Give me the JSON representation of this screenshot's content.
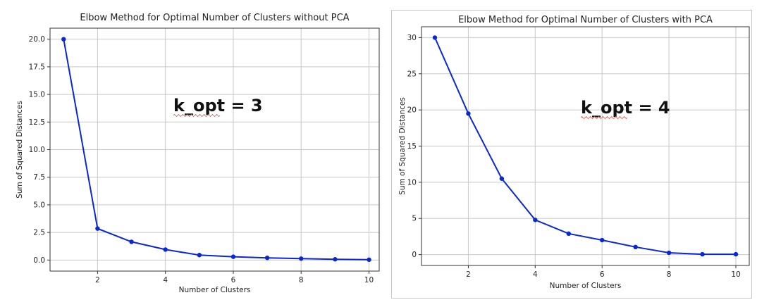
{
  "chart_data": [
    {
      "type": "line",
      "title": "Elbow Method for Optimal Number of Clusters without PCA",
      "xlabel": "Number of Clusters",
      "ylabel": "Sum of Squared Distances",
      "x": [
        1,
        2,
        3,
        4,
        5,
        6,
        7,
        8,
        9,
        10
      ],
      "values": [
        20.0,
        2.85,
        1.65,
        0.95,
        0.45,
        0.3,
        0.2,
        0.13,
        0.07,
        0.03
      ],
      "xticks": [
        "2",
        "4",
        "6",
        "8",
        "10"
      ],
      "yticks": [
        "0.0",
        "2.5",
        "5.0",
        "7.5",
        "10.0",
        "12.5",
        "15.0",
        "17.5",
        "20.0"
      ],
      "xlim": [
        0.6,
        10.3
      ],
      "ylim": [
        -1.0,
        21.0
      ],
      "grid": true,
      "annotation": "k_opt = 3",
      "color": "#0a28d2"
    },
    {
      "type": "line",
      "title": "Elbow Method for Optimal Number of Clusters with PCA",
      "xlabel": "Number of Clusters",
      "ylabel": "Sum of Squared Distances",
      "x": [
        1,
        2,
        3,
        4,
        5,
        6,
        7,
        8,
        9,
        10
      ],
      "values": [
        30.0,
        19.5,
        10.5,
        4.8,
        2.9,
        2.0,
        1.05,
        0.25,
        0.05,
        0.05
      ],
      "xticks": [
        "2",
        "4",
        "6",
        "8",
        "10"
      ],
      "yticks": [
        "0",
        "5",
        "10",
        "15",
        "20",
        "25",
        "30"
      ],
      "xlim": [
        0.6,
        10.4
      ],
      "ylim": [
        -1.5,
        31.5
      ],
      "grid": true,
      "annotation": "k_opt = 4",
      "color": "#0a28d2"
    }
  ]
}
